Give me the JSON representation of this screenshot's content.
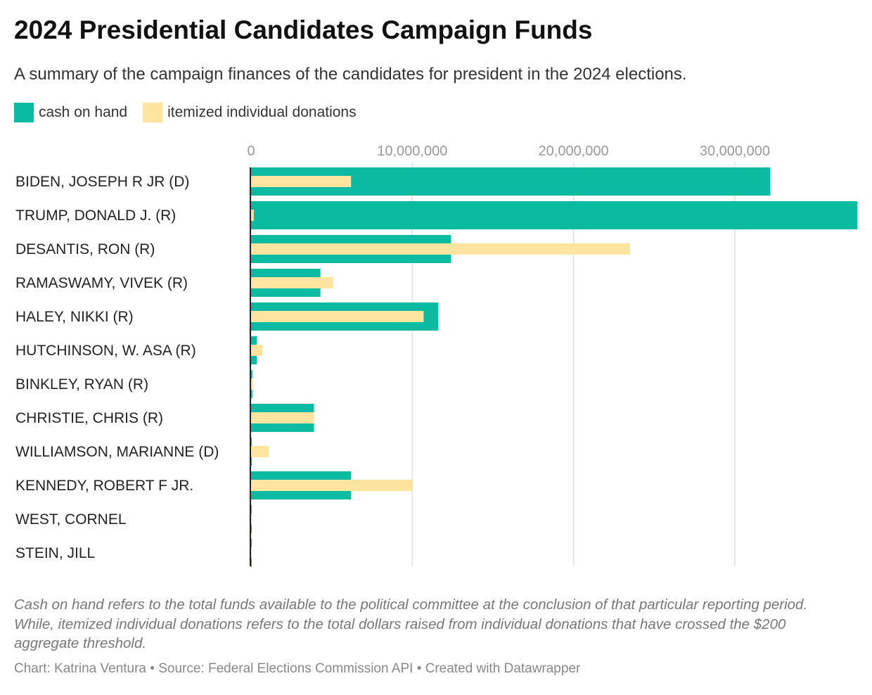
{
  "title": "2024 Presidential Candidates Campaign Funds",
  "subtitle": "A summary of the campaign finances of the candidates for president in the 2024 elections.",
  "note": "Cash on hand refers to the total funds available to the political committee at the conclusion of that particular reporting period. While, itemized individual donations refers to the total dollars raised from individual donations that have crossed the $200 aggregate threshold.",
  "credit": "Chart: Katrina Ventura • Source: Federal Elections Commission API • Created with Datawrapper",
  "colors": {
    "cash": "#0bbba1",
    "itemized": "#fee59f"
  },
  "chart_data": {
    "type": "bar",
    "orientation": "horizontal",
    "title": "2024 Presidential Candidates Campaign Funds",
    "categories": [
      "BIDEN, JOSEPH R JR (D)",
      "TRUMP, DONALD J. (R)",
      "DESANTIS, RON (R)",
      "RAMASWAMY, VIVEK (R)",
      "HALEY, NIKKI (R)",
      "HUTCHINSON, W. ASA (R)",
      "BINKLEY, RYAN (R)",
      "CHRISTIE, CHRIS (R)",
      "WILLIAMSON, MARIANNE (D)",
      "KENNEDY, ROBERT F JR.",
      "WEST, CORNEL",
      "STEIN, JILL"
    ],
    "series": [
      {
        "name": "cash on hand",
        "values": [
          32200000,
          37600000,
          12400000,
          4300000,
          11600000,
          350000,
          80000,
          3900000,
          50000,
          6200000,
          40000,
          30000
        ]
      },
      {
        "name": "itemized individual donations",
        "values": [
          6200000,
          170000,
          23500000,
          5100000,
          10700000,
          700000,
          130000,
          3900000,
          1100000,
          10000000,
          20000,
          20000
        ]
      }
    ],
    "xlim": [
      0,
      37600000
    ],
    "xticks": [
      0,
      10000000,
      20000000,
      30000000
    ],
    "xtick_labels": [
      "0",
      "10,000,000",
      "20,000,000",
      "30,000,000"
    ],
    "grid": true,
    "legend": "top-left"
  }
}
